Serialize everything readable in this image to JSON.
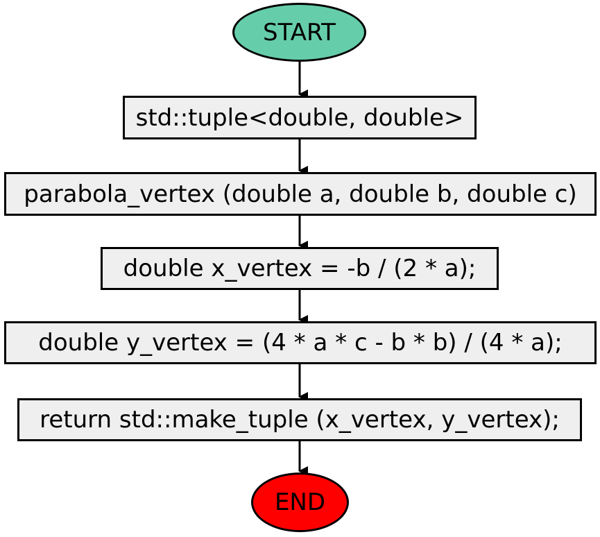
{
  "flowchart": {
    "start_label": "START",
    "end_label": "END",
    "steps": [
      "std::tuple<double, double>",
      "parabola_vertex (double a, double b, double c)",
      "double x_vertex = -b / (2 * a);",
      "double y_vertex = (4 * a * c - b * b) / (4 * a);",
      "return std::make_tuple (x_vertex, y_vertex);"
    ]
  },
  "colors": {
    "start_fill": "#66cdaa",
    "end_fill": "#ff0000",
    "process_fill": "#efefef",
    "stroke": "#000000"
  }
}
